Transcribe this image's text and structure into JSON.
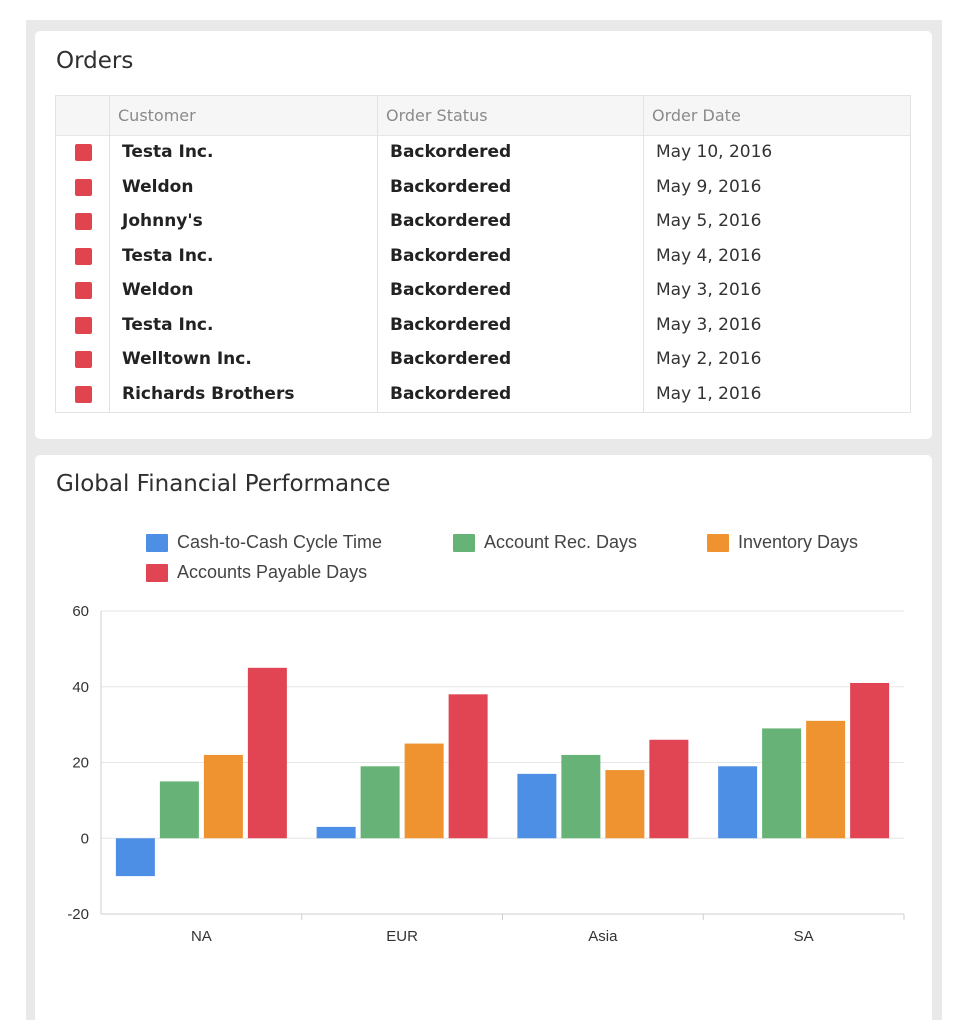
{
  "orders": {
    "title": "Orders",
    "columns": [
      "Customer",
      "Order Status",
      "Order Date"
    ],
    "rows": [
      {
        "customer": "Testa Inc.",
        "status": "Backordered",
        "date": "May 10, 2016"
      },
      {
        "customer": "Weldon",
        "status": "Backordered",
        "date": "May 9, 2016"
      },
      {
        "customer": "Johnny's",
        "status": "Backordered",
        "date": "May 5, 2016"
      },
      {
        "customer": "Testa Inc.",
        "status": "Backordered",
        "date": "May 4, 2016"
      },
      {
        "customer": "Weldon",
        "status": "Backordered",
        "date": "May 3, 2016"
      },
      {
        "customer": "Testa Inc.",
        "status": "Backordered",
        "date": "May 3, 2016"
      },
      {
        "customer": "Welltown Inc.",
        "status": "Backordered",
        "date": "May 2, 2016"
      },
      {
        "customer": "Richards Brothers",
        "status": "Backordered",
        "date": "May 1, 2016"
      }
    ],
    "flag_color": "#e0444f"
  },
  "performance": {
    "title": "Global Financial Performance"
  },
  "chart_data": {
    "type": "bar",
    "categories": [
      "NA",
      "EUR",
      "Asia",
      "SA"
    ],
    "series": [
      {
        "name": "Cash-to-Cash Cycle Time",
        "color": "#4e8fe6",
        "values": [
          -10,
          3,
          17,
          19
        ]
      },
      {
        "name": "Account Rec. Days",
        "color": "#66b277",
        "values": [
          15,
          19,
          22,
          29
        ]
      },
      {
        "name": "Inventory Days",
        "color": "#ee9330",
        "values": [
          22,
          25,
          18,
          31
        ]
      },
      {
        "name": "Accounts Payable Days",
        "color": "#e14553",
        "values": [
          45,
          38,
          26,
          41
        ]
      }
    ],
    "ylim": [
      -20,
      60
    ],
    "yticks": [
      -20,
      0,
      20,
      40,
      60
    ],
    "legend_position": "top",
    "grid": true,
    "title": "",
    "xlabel": "",
    "ylabel": ""
  }
}
